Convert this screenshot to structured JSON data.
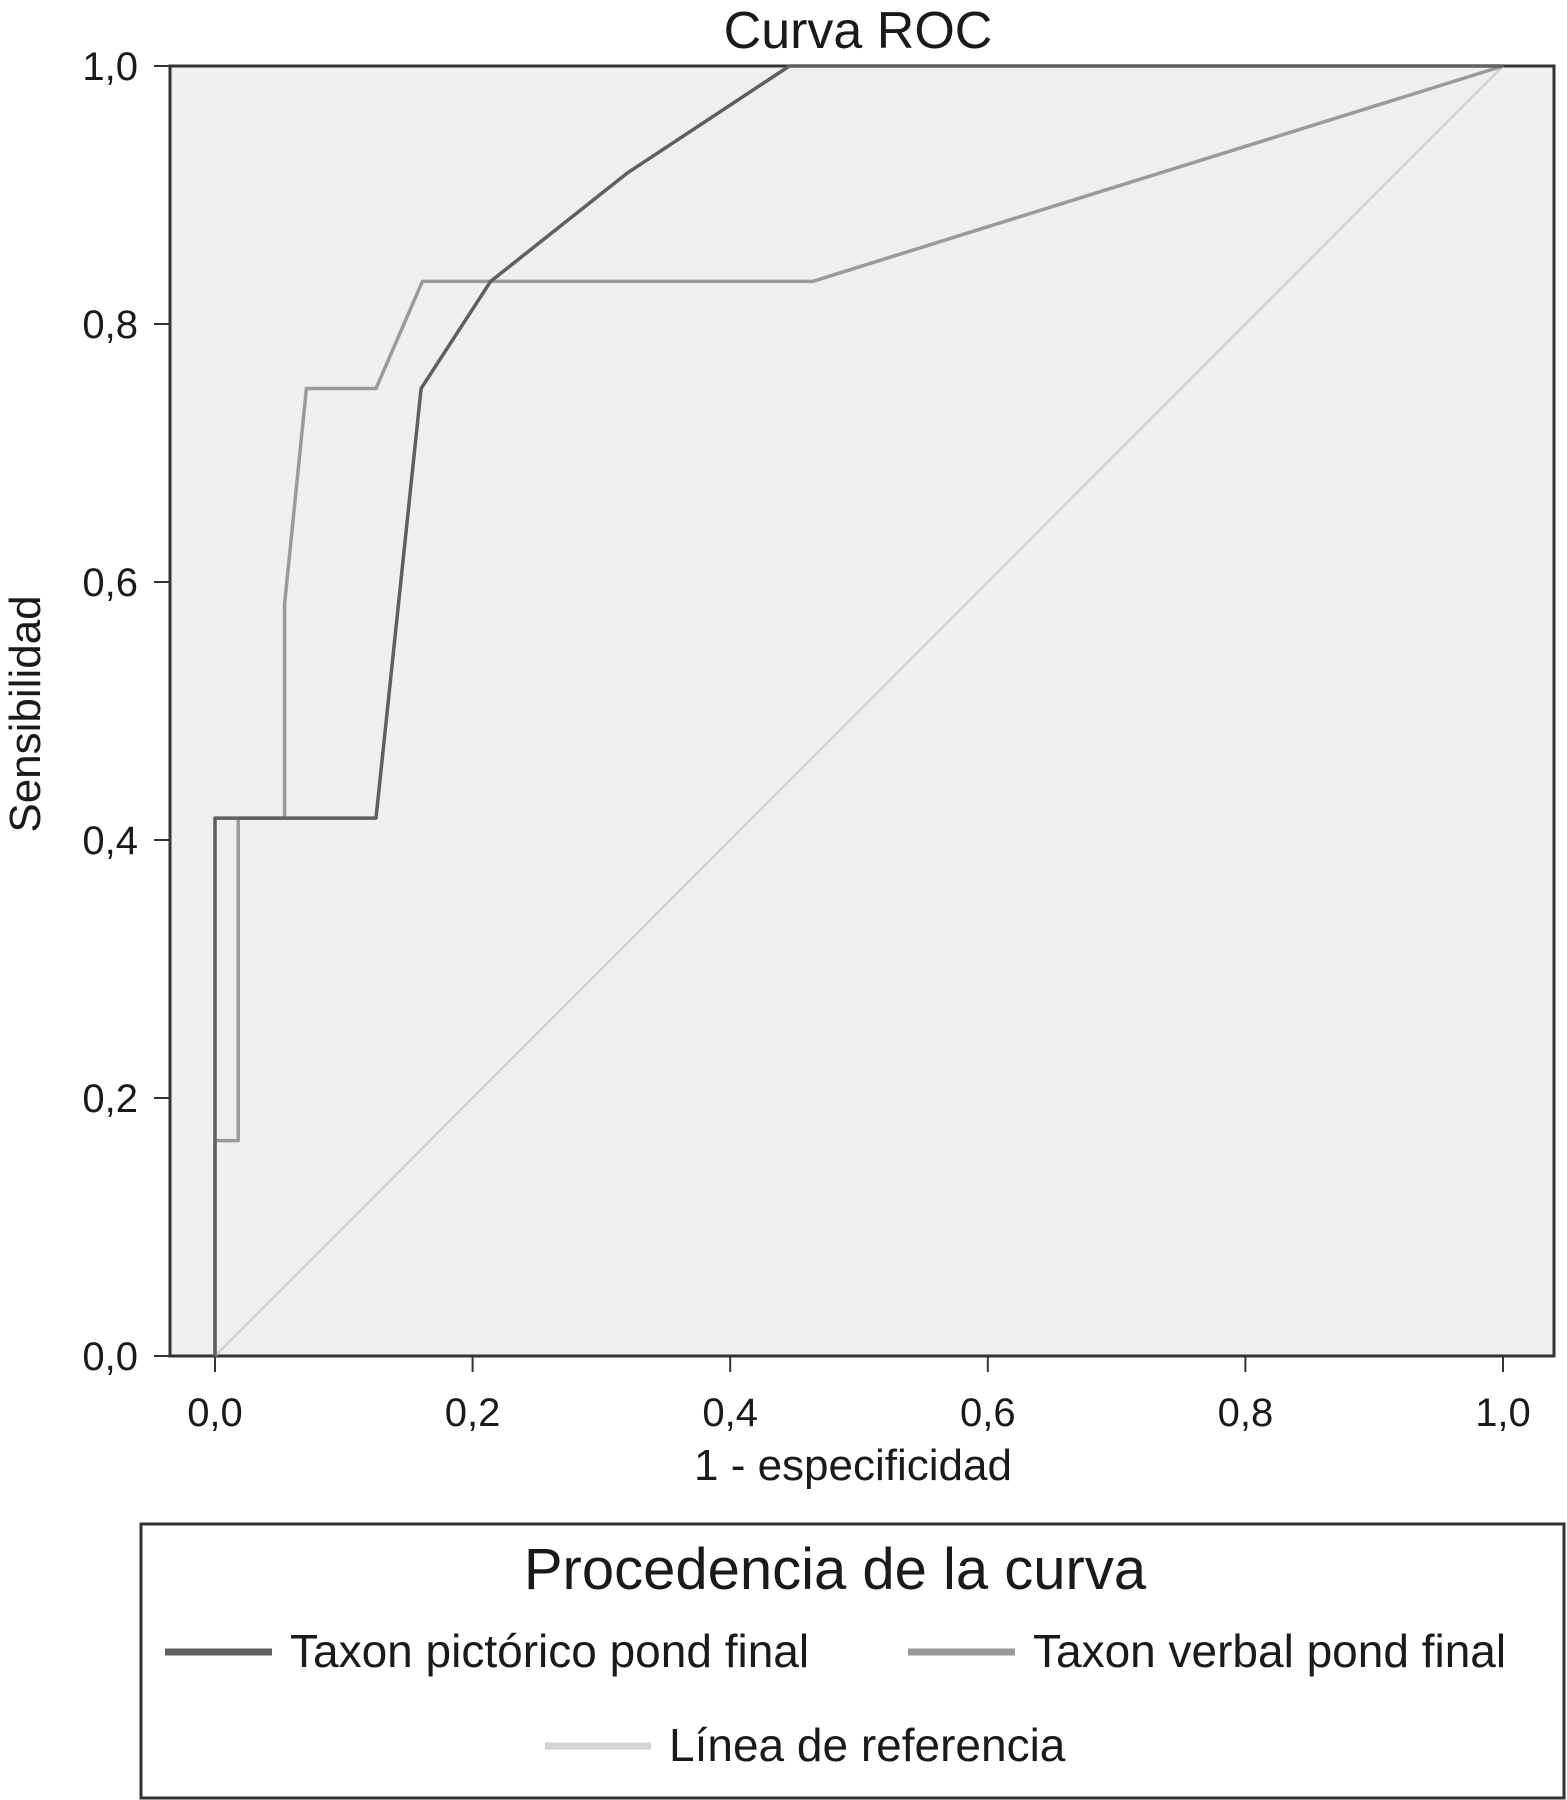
{
  "chart_data": {
    "type": "line",
    "title": "Curva ROC",
    "xlabel": "1 - especificidad",
    "ylabel": "Sensibilidad",
    "xlim": [
      0,
      1
    ],
    "ylim": [
      0,
      1
    ],
    "xticks": [
      "0,0",
      "0,2",
      "0,4",
      "0,6",
      "0,8",
      "1,0"
    ],
    "yticks": [
      "0,0",
      "0,2",
      "0,4",
      "0,6",
      "0,8",
      "1,0"
    ],
    "grid": false,
    "legend_title": "Procedencia de la curva",
    "legend_position": "bottom",
    "series": [
      {
        "name": "Taxon pictórico pond final",
        "color": "#5f5f5f",
        "x": [
          0.0,
          0.0,
          0.018,
          0.125,
          0.16,
          0.214,
          0.32,
          0.446,
          1.0
        ],
        "y": [
          0.0,
          0.417,
          0.417,
          0.417,
          0.75,
          0.833,
          0.917,
          1.0,
          1.0
        ]
      },
      {
        "name": "Taxon verbal pond final",
        "color": "#9a9a9a",
        "x": [
          0.0,
          0.0,
          0.018,
          0.018,
          0.054,
          0.054,
          0.071,
          0.125,
          0.161,
          0.464,
          1.0
        ],
        "y": [
          0.0,
          0.167,
          0.167,
          0.417,
          0.417,
          0.583,
          0.75,
          0.75,
          0.833,
          0.833,
          1.0
        ]
      },
      {
        "name": "Línea de referencia",
        "color": "#d2d2d2",
        "x": [
          0,
          1
        ],
        "y": [
          0,
          1
        ]
      }
    ]
  }
}
